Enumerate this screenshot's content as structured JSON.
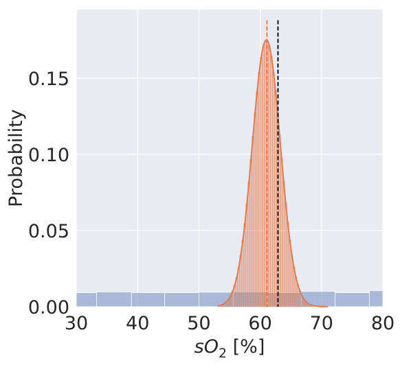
{
  "chart_data": {
    "type": "bar",
    "title": "",
    "xlabel": "sO",
    "xlabel_subscript": "2",
    "xlabel_suffix": " [%]",
    "ylabel": "Probability",
    "xlim": [
      30,
      80
    ],
    "ylim": [
      0,
      0.195
    ],
    "xticks": [
      "30",
      "40",
      "50",
      "60",
      "70",
      "80"
    ],
    "xtick_values": [
      30,
      40,
      50,
      60,
      70,
      80
    ],
    "yticks": [
      "0.00",
      "0.05",
      "0.10",
      "0.15"
    ],
    "ytick_values": [
      0,
      0.05,
      0.1,
      0.15
    ],
    "grid": true,
    "background": "#eaeaf2",
    "series": [
      {
        "kind": "histogram",
        "color": "#8fa4cd",
        "bins": [
          {
            "x0": 30.0,
            "x1": 33.3,
            "value": 0.0092
          },
          {
            "x0": 33.3,
            "x1": 39.0,
            "value": 0.0097
          },
          {
            "x0": 39.0,
            "x1": 44.4,
            "value": 0.0092
          },
          {
            "x0": 44.4,
            "x1": 50.0,
            "value": 0.0092
          },
          {
            "x0": 50.0,
            "x1": 55.6,
            "value": 0.0095
          },
          {
            "x0": 55.6,
            "x1": 61.1,
            "value": 0.0097
          },
          {
            "x0": 61.1,
            "x1": 66.7,
            "value": 0.0092
          },
          {
            "x0": 66.7,
            "x1": 72.2,
            "value": 0.01
          },
          {
            "x0": 72.2,
            "x1": 77.8,
            "value": 0.0092
          },
          {
            "x0": 77.8,
            "x1": 80.0,
            "value": 0.0105
          }
        ]
      },
      {
        "kind": "histogram",
        "color": "#e07b4f",
        "mean": 61.0,
        "sd": 2.3,
        "peak": 0.175,
        "range": [
          53,
          71
        ],
        "bin_width": 0.333
      }
    ],
    "lines": [
      {
        "x": 61.1,
        "style": "dashed",
        "color": "#e07b4f",
        "y_top": 0.188
      },
      {
        "x": 62.9,
        "style": "dashed",
        "color": "#111111",
        "y_top": 0.188
      }
    ]
  }
}
